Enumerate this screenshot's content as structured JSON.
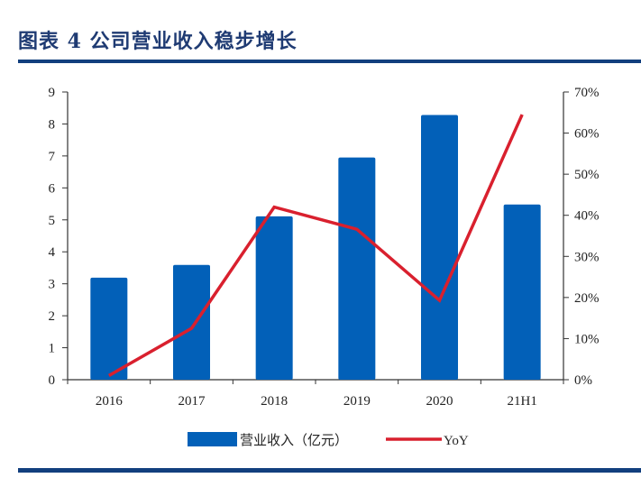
{
  "header": {
    "title": "图表 4   公司营业收入稳步增长"
  },
  "colors": {
    "title": "#1f3b73",
    "rule": "#123f7e",
    "bar": "#0260b8",
    "line": "#d9202e",
    "axis": "#333333"
  },
  "legend": {
    "bar_label": "营业收入（亿元）",
    "line_label": "YoY"
  },
  "chart_data": {
    "type": "bar+line",
    "title": "公司营业收入稳步增长",
    "categories": [
      "2016",
      "2017",
      "2018",
      "2019",
      "2020",
      "21H1"
    ],
    "series": [
      {
        "name": "营业收入（亿元）",
        "type": "bar",
        "axis": "left",
        "values": [
          3.19,
          3.59,
          5.11,
          6.95,
          8.28,
          5.48
        ]
      },
      {
        "name": "YoY",
        "type": "line",
        "axis": "right",
        "values": [
          0.01,
          0.125,
          0.42,
          0.366,
          0.193,
          0.645
        ]
      }
    ],
    "left_axis": {
      "min": 0,
      "max": 9,
      "ticks": [
        "0",
        "1",
        "2",
        "3",
        "4",
        "5",
        "6",
        "7",
        "8",
        "9"
      ]
    },
    "right_axis": {
      "min": 0,
      "max": 0.7,
      "ticks": [
        "0%",
        "10%",
        "20%",
        "30%",
        "40%",
        "50%",
        "60%",
        "70%"
      ]
    },
    "xlabel": "",
    "ylabel": "",
    "grid": false,
    "legend_position": "bottom"
  }
}
